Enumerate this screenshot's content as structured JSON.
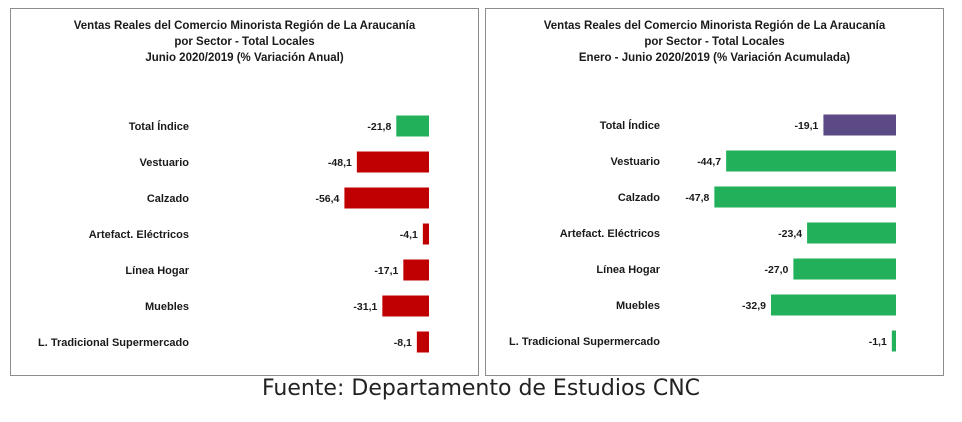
{
  "chart_data": [
    {
      "type": "bar",
      "orientation": "horizontal",
      "title": [
        "Ventas Reales del Comercio Minorista  Región de La Araucanía",
        "por Sector  - Total Locales",
        "Junio 2020/2019 (% Variación Anual)"
      ],
      "categories": [
        "Total Índice",
        "Vestuario",
        "Calzado",
        "Artefact. Eléctricos",
        "Línea Hogar",
        "Muebles",
        "L. Tradicional Supermercado"
      ],
      "values": [
        -21.8,
        -48.1,
        -56.4,
        -4.1,
        -17.1,
        -31.1,
        -8.1
      ],
      "labels": [
        "-21,8",
        "-48,1",
        "-56,4",
        "-4,1",
        "-17,1",
        "-31,1",
        "-8,1"
      ],
      "colors": [
        "#22b05a",
        "#c00000",
        "#c00000",
        "#c00000",
        "#c00000",
        "#c00000",
        "#c00000"
      ],
      "xlim": [
        -60,
        0
      ],
      "grid": false
    },
    {
      "type": "bar",
      "orientation": "horizontal",
      "title": [
        "Ventas Reales del Comercio Minorista Región de La Araucanía",
        "por Sector - Total Locales",
        "Enero - Junio 2020/2019 (% Variación Acumulada)"
      ],
      "categories": [
        "Total Índice",
        "Vestuario",
        "Calzado",
        "Artefact. Eléctricos",
        "Línea Hogar",
        "Muebles",
        "L. Tradicional Supermercado"
      ],
      "values": [
        -19.1,
        -44.7,
        -47.8,
        -23.4,
        -27.0,
        -32.9,
        -1.1
      ],
      "labels": [
        "-19,1",
        "-44,7",
        "-47,8",
        "-23,4",
        "-27,0",
        "-32,9",
        "-1,1"
      ],
      "colors": [
        "#5c4a86",
        "#22b05a",
        "#22b05a",
        "#22b05a",
        "#22b05a",
        "#22b05a",
        "#22b05a"
      ],
      "xlim": [
        -50,
        0
      ],
      "grid": false
    }
  ],
  "source": "Fuente: Departamento de Estudios CNC"
}
